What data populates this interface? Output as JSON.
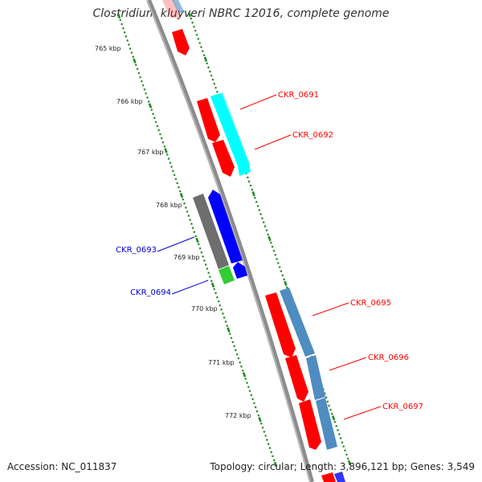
{
  "title": "Clostridium kluyveri NBRC 12016, complete genome",
  "footer": {
    "accession": "Accession: NC_011837",
    "summary": "Topology: circular; Length: 3,896,121 bp; Genes: 3,549"
  },
  "colors": {
    "backbone": "#8c8c8c",
    "tick": "#1f8a1f",
    "cds_forward_red": "#ff0000",
    "cds_teal": "#00ffff",
    "cds_steelblue": "#4f8cc0",
    "cds_gray": "#6e6e6e",
    "cds_blue": "#0000ff",
    "cds_green": "#33cc33",
    "label_red": "#ff0000",
    "label_blue": "#0000cc"
  },
  "kbp_ticks": [
    "765 kbp",
    "766 kbp",
    "767 kbp",
    "768 kbp",
    "769 kbp",
    "770 kbp",
    "771 kbp",
    "772 kbp"
  ],
  "gene_labels": [
    "CKR_0691",
    "CKR_0692",
    "CKR_0693",
    "CKR_0694",
    "CKR_0695",
    "CKR_0696",
    "CKR_0697"
  ]
}
